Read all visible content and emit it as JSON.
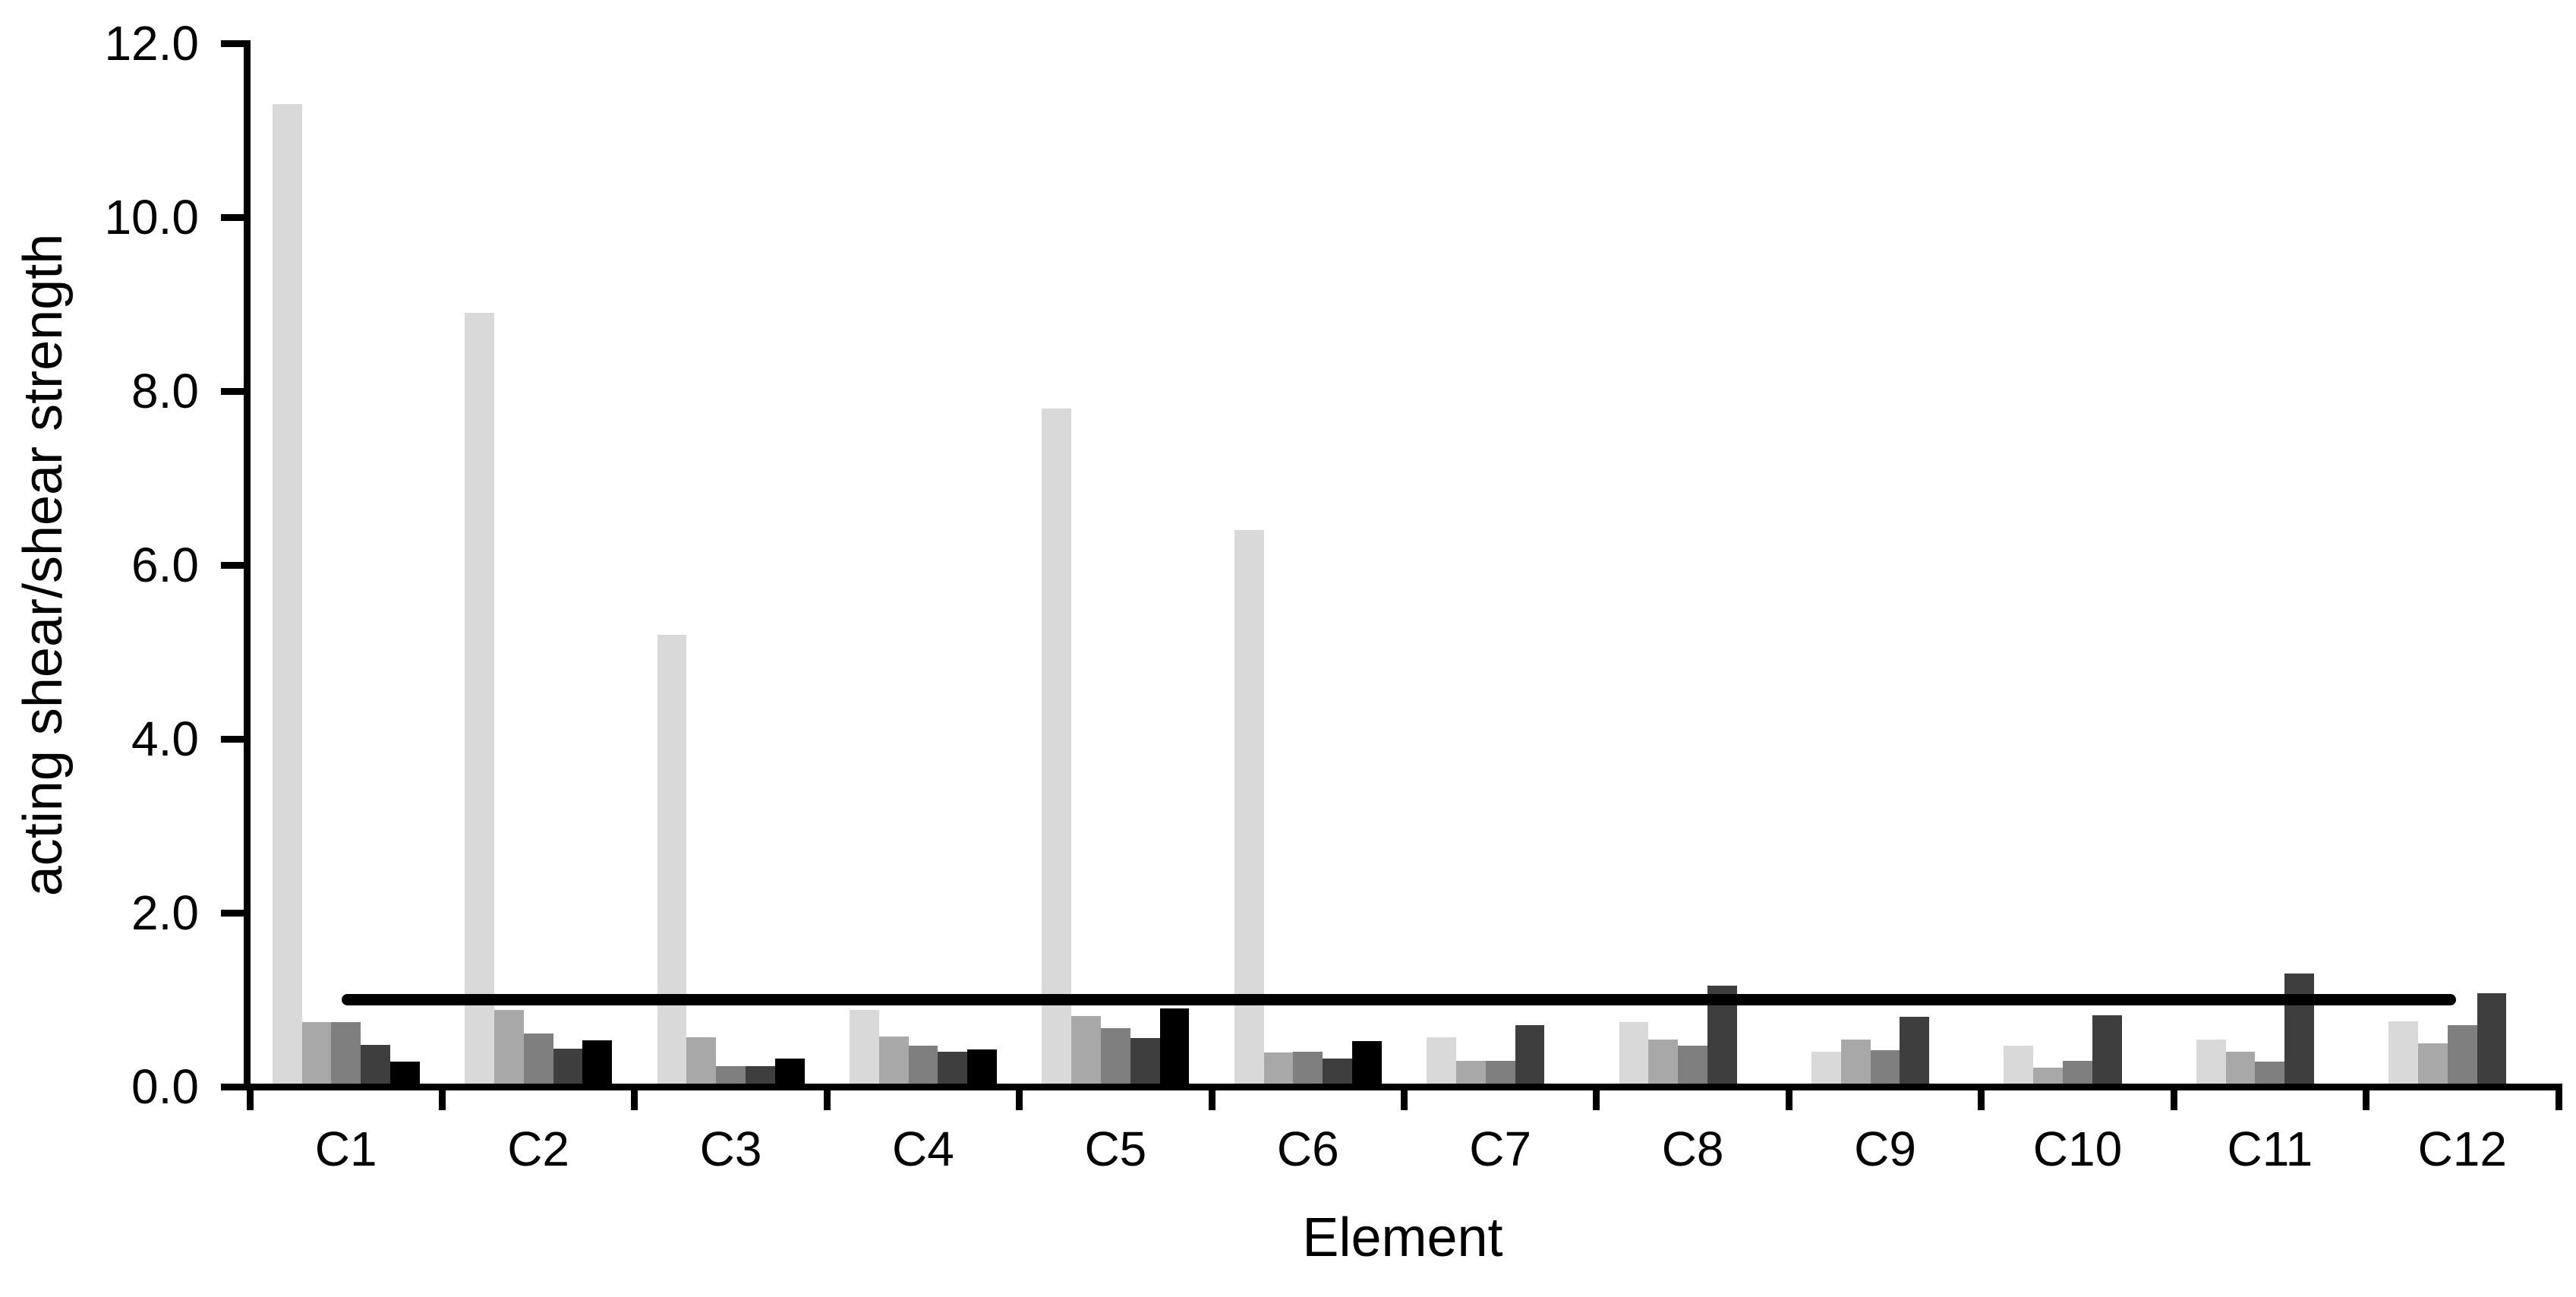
{
  "chart_data": {
    "type": "bar",
    "title": "",
    "xlabel": "Element",
    "ylabel": "acting shear/shear strength",
    "categories": [
      "C1",
      "C2",
      "C3",
      "C4",
      "C5",
      "C6",
      "C7",
      "C8",
      "C9",
      "C10",
      "C11",
      "C12"
    ],
    "series": [
      {
        "name": "lightest-gray",
        "color": "#d9d9d9",
        "values": [
          11.3,
          8.9,
          5.2,
          0.88,
          7.8,
          6.4,
          0.57,
          0.74,
          0.4,
          0.47,
          0.54,
          0.75
        ]
      },
      {
        "name": "light-gray",
        "color": "#a8a8a8",
        "values": [
          0.74,
          0.88,
          0.57,
          0.58,
          0.81,
          0.39,
          0.3,
          0.54,
          0.54,
          0.22,
          0.4,
          0.5
        ]
      },
      {
        "name": "medium-gray",
        "color": "#7f7f7f",
        "values": [
          0.74,
          0.61,
          0.24,
          0.47,
          0.67,
          0.4,
          0.3,
          0.47,
          0.42,
          0.3,
          0.29,
          0.71
        ]
      },
      {
        "name": "dark-gray",
        "color": "#3e3e3e",
        "values": [
          0.48,
          0.44,
          0.24,
          0.4,
          0.56,
          0.32,
          0.71,
          1.16,
          0.8,
          0.82,
          1.3,
          1.07
        ]
      },
      {
        "name": "black",
        "color": "#000000",
        "values": [
          0.29,
          0.53,
          0.32,
          0.43,
          0.9,
          0.52,
          0,
          0,
          0,
          0,
          0,
          0
        ]
      }
    ],
    "yticks": [
      "0.0",
      "2.0",
      "4.0",
      "6.0",
      "8.0",
      "10.0",
      "12.0"
    ],
    "ylim": [
      0,
      12
    ],
    "ytick_step": 2,
    "grid": false,
    "legend": "none",
    "ref_line": {
      "value": 1.0,
      "color": "#000000"
    },
    "axis_color": "#000000",
    "background_color": "#ffffff"
  }
}
